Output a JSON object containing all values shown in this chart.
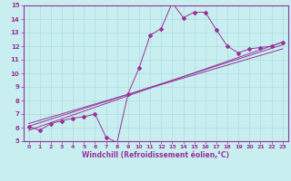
{
  "title": "",
  "xlabel": "Windchill (Refroidissement éolien,°C)",
  "ylabel": "",
  "bg_color": "#c8eef0",
  "grid_color": "#aadddd",
  "line_color": "#993399",
  "xlim": [
    -0.5,
    23.5
  ],
  "ylim": [
    5,
    15
  ],
  "xticks": [
    0,
    1,
    2,
    3,
    4,
    5,
    6,
    7,
    8,
    9,
    10,
    11,
    12,
    13,
    14,
    15,
    16,
    17,
    18,
    19,
    20,
    21,
    22,
    23
  ],
  "yticks": [
    5,
    6,
    7,
    8,
    9,
    10,
    11,
    12,
    13,
    14,
    15
  ],
  "curve1_x": [
    0,
    1,
    2,
    3,
    4,
    5,
    6,
    7,
    8,
    9,
    10,
    11,
    12,
    13,
    14,
    15,
    16,
    17,
    18,
    19,
    20,
    21,
    22,
    23
  ],
  "curve1_y": [
    6.1,
    5.8,
    6.3,
    6.5,
    6.7,
    6.8,
    7.0,
    5.3,
    4.9,
    8.5,
    10.4,
    12.8,
    13.3,
    15.2,
    14.1,
    14.5,
    14.5,
    13.2,
    12.0,
    11.5,
    11.8,
    11.9,
    12.0,
    12.3
  ],
  "curve2_x": [
    0,
    23
  ],
  "curve2_y": [
    5.8,
    12.3
  ],
  "curve3_x": [
    0,
    23
  ],
  "curve3_y": [
    6.1,
    12.1
  ],
  "curve4_x": [
    0,
    23
  ],
  "curve4_y": [
    6.3,
    11.8
  ]
}
